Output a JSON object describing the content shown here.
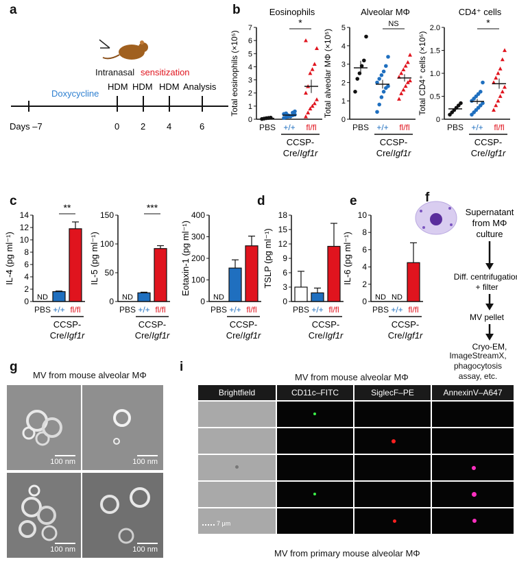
{
  "panels": {
    "a": "a",
    "b": "b",
    "c": "c",
    "d": "d",
    "e": "e",
    "f": "f",
    "g": "g",
    "i": "i"
  },
  "colors": {
    "wt_blue": "#1f6fbf",
    "ko_red": "#e0141e",
    "pbs_black": "#111111",
    "doxy_blue": "#2d7fd0"
  },
  "panel_a": {
    "doxycycline": "Doxycycline",
    "intranasal": "Intranasal",
    "sensitization": "sensitization",
    "hdm": "HDM",
    "analysis": "Analysis",
    "days_label": "Days –7",
    "day_ticks": [
      "0",
      "2",
      "4",
      "6"
    ],
    "mouse_icon": "mouse-icon"
  },
  "groups": {
    "pbs": "PBS",
    "wt": "+/+",
    "ko": "fl/fl",
    "genotype_line1": "CCSP-",
    "genotype_line2": "Cre/Igf1r"
  },
  "panel_b": [
    {
      "title": "Eosinophils",
      "ylabel": "Total eosinophils (×10⁵)",
      "ylim": [
        0,
        7
      ],
      "yticks": [
        "0",
        "1",
        "2",
        "3",
        "4",
        "5",
        "6",
        "7"
      ],
      "significance": "*",
      "pbs": [
        0.02,
        0.05,
        0.08,
        0.1,
        0.12
      ],
      "wt": [
        0.1,
        0.15,
        0.2,
        0.25,
        0.3,
        0.35,
        0.4,
        0.45,
        0.3,
        0.2,
        0.5,
        0.6
      ],
      "ko": [
        0.2,
        0.5,
        0.8,
        1.0,
        1.2,
        1.5,
        2.0,
        2.5,
        3.5,
        3.8,
        4.2,
        5.4,
        6.0
      ]
    },
    {
      "title": "Alveolar MΦ",
      "ylabel": "Total alveolar MΦ (×10⁵)",
      "ylim": [
        0,
        5
      ],
      "yticks": [
        "0",
        "1",
        "2",
        "3",
        "4",
        "5"
      ],
      "significance": "NS",
      "pbs": [
        1.5,
        2.2,
        2.5,
        2.9,
        3.2,
        4.5
      ],
      "wt": [
        0.4,
        0.8,
        1.2,
        1.5,
        1.7,
        1.8,
        2.0,
        2.2,
        2.4,
        2.6,
        2.9,
        3.4
      ],
      "ko": [
        1.1,
        1.4,
        1.6,
        1.8,
        2.0,
        2.1,
        2.3,
        2.5,
        2.7,
        2.9,
        3.1,
        3.5
      ]
    },
    {
      "title": "CD4⁺ cells",
      "ylabel": "Total CD4⁺ cells (×10⁵)",
      "ylim": [
        0,
        2.0
      ],
      "yticks": [
        "0",
        "0.5",
        "1.0",
        "1.5",
        "2.0"
      ],
      "significance": "*",
      "pbs": [
        0.1,
        0.15,
        0.2,
        0.25,
        0.3,
        0.35
      ],
      "wt": [
        0.1,
        0.15,
        0.2,
        0.25,
        0.3,
        0.35,
        0.4,
        0.45,
        0.5,
        0.55,
        0.6,
        0.8
      ],
      "ko": [
        0.2,
        0.3,
        0.4,
        0.5,
        0.6,
        0.7,
        0.8,
        0.9,
        1.0,
        1.1,
        1.3,
        1.5
      ]
    }
  ],
  "panel_c": [
    {
      "ylabel": "IL-4 (pg ml⁻¹)",
      "ylim": [
        0,
        14
      ],
      "yticks": [
        "0",
        "2",
        "4",
        "6",
        "8",
        "10",
        "12",
        "14"
      ],
      "significance": "**",
      "pbs": "ND",
      "wt": 1.6,
      "wt_err": 0.1,
      "ko": 11.8,
      "ko_err": 1.1
    },
    {
      "ylabel": "IL-5 (pg ml⁻¹)",
      "ylim": [
        0,
        150
      ],
      "yticks": [
        "0",
        "50",
        "100",
        "150"
      ],
      "significance": "***",
      "pbs": "ND",
      "wt": 15,
      "wt_err": 1.2,
      "ko": 92,
      "ko_err": 5
    },
    {
      "ylabel": "Eotaxin-1 (pg ml⁻¹)",
      "ylim": [
        0,
        400
      ],
      "yticks": [
        "0",
        "100",
        "200",
        "300",
        "400"
      ],
      "significance": "",
      "pbs": "ND",
      "wt": 155,
      "wt_err": 38,
      "ko": 258,
      "ko_err": 45
    }
  ],
  "panel_d": {
    "ylabel": "TSLP (pg ml⁻¹)",
    "ylim": [
      0,
      18
    ],
    "yticks": [
      "0",
      "3",
      "6",
      "9",
      "12",
      "15",
      "18"
    ],
    "pbs": 3.0,
    "pbs_err": 3.3,
    "wt": 1.8,
    "wt_err": 1.0,
    "ko": 11.5,
    "ko_err": 4.8
  },
  "panel_e": {
    "ylabel": "IL-6 (pg ml⁻¹)",
    "ylim": [
      0,
      10
    ],
    "yticks": [
      "0",
      "2",
      "4",
      "6",
      "8",
      "10"
    ],
    "pbs": "ND",
    "wt": "ND",
    "ko": 4.5,
    "ko_err": 2.3
  },
  "panel_f": {
    "steps": [
      "Supernatant",
      "from MΦ",
      "culture",
      "Diff. centrifugation",
      "+ filter",
      "MV pellet",
      "Cryo-EM,",
      "ImageStreamX,",
      "phagocytosis",
      "assay, etc."
    ],
    "cell_icon": "macrophage-icon"
  },
  "panel_g": {
    "title": "MV from mouse alveolar MΦ",
    "scale": "100 nm"
  },
  "panel_i": {
    "title": "MV from mouse alveolar MΦ",
    "channels": [
      "Brightfield",
      "CD11c–FITC",
      "SiglecF–PE",
      "AnnexinV–A647"
    ],
    "scale": "7 μm",
    "caption": "MV from primary mouse alveolar MΦ"
  }
}
